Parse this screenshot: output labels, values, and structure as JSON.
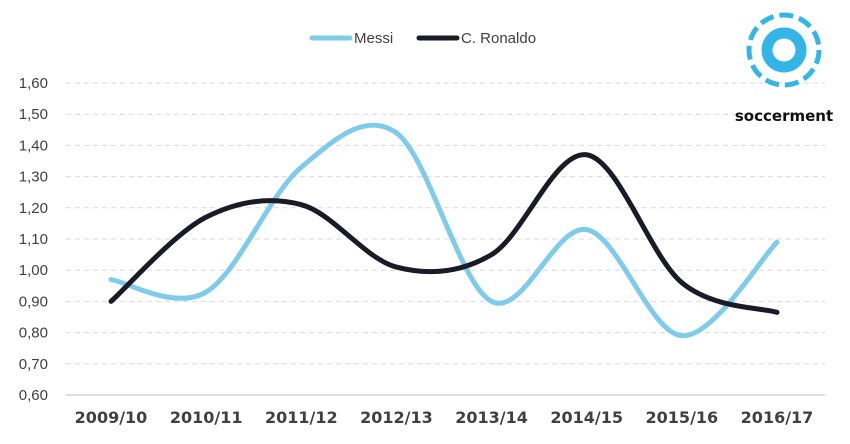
{
  "colors": {
    "messi": "#7ecbea",
    "ronaldo": "#1a1a28",
    "grid": "#d9d9d9",
    "axis": "#404040",
    "logo": "#33b5e8"
  },
  "logo": {
    "icon": "soccer-ball-logo-icon",
    "text": "soccerment"
  },
  "chart_data": {
    "type": "line",
    "categories": [
      "2009/10",
      "2010/11",
      "2011/12",
      "2012/13",
      "2013/14",
      "2014/15",
      "2015/16",
      "2016/17"
    ],
    "series": [
      {
        "name": "Messi",
        "values": [
          0.97,
          0.93,
          1.33,
          1.44,
          0.9,
          1.13,
          0.79,
          1.09
        ]
      },
      {
        "name": "C. Ronaldo",
        "values": [
          0.9,
          1.17,
          1.21,
          1.01,
          1.05,
          1.37,
          0.96,
          0.865
        ]
      }
    ],
    "ylim": [
      0.6,
      1.6
    ],
    "yticks": [
      "0,60",
      "0,70",
      "0,80",
      "0,90",
      "1,00",
      "1,10",
      "1,20",
      "1,30",
      "1,40",
      "1,50",
      "1,60"
    ],
    "grid": true,
    "legend_position": "top-center",
    "smooth": true
  }
}
